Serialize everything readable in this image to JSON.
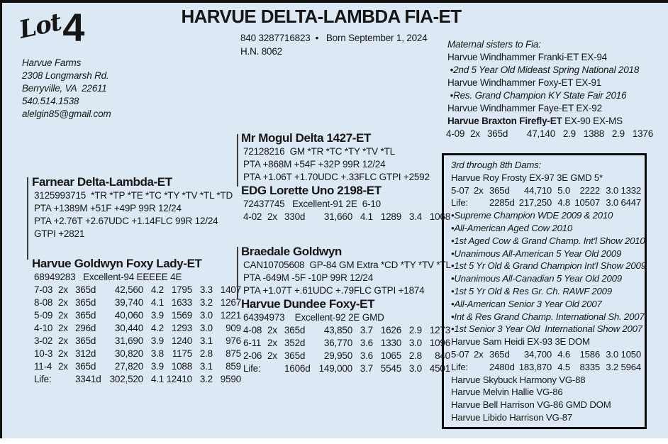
{
  "meta": {
    "bg_color": "#dce9f4",
    "ink_color": "#161616",
    "accent_border": "#0c0c0c"
  },
  "lot": {
    "word": "Lot",
    "number": "4"
  },
  "consignor": [
    "Harvue Farms",
    "2308 Longmarsh Rd.",
    "Berryville, VA  22611",
    "540.514.1538",
    "alelgin85@gmail.com"
  ],
  "header": {
    "title": "HARVUE DELTA-LAMBDA FIA-ET",
    "reg_line": "840 3287716823  •   Born September 1, 2024",
    "hn": "H.N. 8062"
  },
  "maternal_sisters": {
    "heading": "Maternal sisters to Fia:",
    "lines": [
      {
        "kind": "name",
        "text": "Harvue Windhammer Franki-ET EX-94"
      },
      {
        "kind": "award",
        "text": " •2nd 5 Year Old Mideast Spring National 2018"
      },
      {
        "kind": "name",
        "text": "Harvue Windhammer Foxy-ET EX-91"
      },
      {
        "kind": "award",
        "text": " •Res. Grand Champion KY State Fair 2016"
      },
      {
        "kind": "name",
        "text": "Harvue Windhammer Faye-ET EX-92"
      },
      {
        "kind": "name",
        "bold": "Harvue Braxton Firefly-ET",
        "rest": " EX-90 EX-MS"
      }
    ],
    "records": [
      [
        "4-09",
        "2x",
        "365d",
        "47,140",
        "2.9",
        "1388",
        "2.9",
        "1376"
      ]
    ]
  },
  "left_blocks": [
    {
      "name": "Farnear Delta-Lambda-ET",
      "lines": [
        "3125993715  *TR *TP *TE *TC *TY *TV *TL *TD",
        "PTA +1389M +51F +49P 99R 12/24",
        "PTA +2.76T +2.67UDC +1.14FLC 99R 12/24",
        "GTPI +2821"
      ],
      "records": []
    },
    {
      "name": "Harvue Goldwyn Foxy Lady-ET",
      "lines": [
        "68949283   Excellent-94 EEEEE 4E"
      ],
      "records": [
        [
          "7-03",
          "2x",
          "365d",
          "42,560",
          "4.2",
          "1795",
          "3.3",
          "1407"
        ],
        [
          "8-08",
          "2x",
          "365d",
          "39,740",
          "4.1",
          "1633",
          "3.2",
          "1267"
        ],
        [
          "5-09",
          "2x",
          "365d",
          "40,060",
          "3.9",
          "1569",
          "3.0",
          "1221"
        ],
        [
          "4-10",
          "2x",
          "296d",
          "30,440",
          "4.2",
          "1293",
          "3.0",
          "909"
        ],
        [
          "3-02",
          "2x",
          "365d",
          "31,690",
          "3.9",
          "1240",
          "3.1",
          "976"
        ],
        [
          "10-3",
          "2x",
          "312d",
          "30,820",
          "3.8",
          "1175",
          "2.8",
          "875"
        ],
        [
          "11-4",
          "2x",
          "365d",
          "27,820",
          "3.9",
          "1088",
          "3.1",
          "859"
        ],
        [
          "Life:",
          "",
          "3341d",
          "302,520",
          "4.1",
          "12410",
          "3.2",
          "9590"
        ]
      ]
    }
  ],
  "mid_blocks": [
    {
      "name": "Mr Mogul Delta 1427-ET",
      "lines": [
        "72128216  GM *TR *TC *TY *TV *TL",
        "PTA +868M +54F +32P 99R 12/24",
        "PTA +1.06T +1.70UDC +.33FLC GTPI +2592"
      ],
      "records": []
    },
    {
      "name": "EDG Lorette Uno 2198-ET",
      "lines": [
        "72437745   Excellent-91 2E  6-10"
      ],
      "records": [
        [
          "4-02",
          "2x",
          "330d",
          "31,660",
          "4.1",
          "1289",
          "3.4",
          "1068"
        ]
      ]
    },
    {
      "name": "Braedale Goldwyn",
      "lines": [
        "CAN10705608  GP-84 GM Extra *CD *TY *TV *TL",
        "PTA -649M -5F -10P 99R 12/24",
        "PTA +1.07T +.61UDC +.79FLC GTPI +1874"
      ],
      "records": []
    },
    {
      "name": "Harvue Dundee Foxy-ET",
      "lines": [
        "64394973    Excellent-92 2E GMD"
      ],
      "records": [
        [
          "4-08",
          "2x",
          "365d",
          "43,850",
          "3.7",
          "1626",
          "2.9",
          "1273"
        ],
        [
          "6-11",
          "2x",
          "352d",
          "36,770",
          "3.6",
          "1330",
          "3.0",
          "1096"
        ],
        [
          "2-06",
          "2x",
          "365d",
          "29,950",
          "3.6",
          "1065",
          "2.8",
          "840"
        ],
        [
          "Life:",
          "",
          "1606d",
          "149,000",
          "3.7",
          "5545",
          "3.0",
          "4501"
        ]
      ]
    }
  ],
  "dams_box": {
    "heading": "3rd through 8th Dams:",
    "entries": [
      {
        "kind": "name",
        "text": "Harvue Roy Frosty EX-97 3E GMD 5*"
      },
      {
        "cells": [
          "5-07",
          "2x",
          "365d",
          "44,710",
          "5.0",
          "2222",
          "3.0",
          "1332"
        ]
      },
      {
        "cells": [
          "Life:",
          "",
          "2285d",
          "217,250",
          "4.8",
          "10507",
          "3.0",
          "6447"
        ]
      },
      {
        "kind": "award",
        "text": "•Supreme Champion WDE 2009 & 2010"
      },
      {
        "kind": "award",
        "text": "•All-American Aged Cow 2010"
      },
      {
        "kind": "award",
        "text": "•1st Aged Cow & Grand Champ. Int'l Show 2010"
      },
      {
        "kind": "award",
        "text": "•Unanimous All-American 5 Year Old 2009"
      },
      {
        "kind": "award",
        "text": "•1st 5 Yr Old & Grand Champion Int'l Show 2009"
      },
      {
        "kind": "award",
        "text": "•Unanimous All-Canadian 5 Year Old 2009"
      },
      {
        "kind": "award",
        "text": "•1st 5 Yr Old & Res Gr. Ch. RAWF 2009"
      },
      {
        "kind": "award",
        "text": "•All-American Senior 3 Year Old 2007"
      },
      {
        "kind": "award",
        "text": "•Int & Res Grand Champ. International Sh. 2007"
      },
      {
        "kind": "award",
        "text": "•1st Senior 3 Year Old  International Show 2007"
      },
      {
        "kind": "name",
        "text": "Harvue Sam Heidi EX-93 3E DOM"
      },
      {
        "cells": [
          "5-07",
          "2x",
          "365d",
          "34,700",
          "4.6",
          "1586",
          "3.0",
          "1050"
        ]
      },
      {
        "cells": [
          "Life:",
          "",
          "2480d",
          "183,870",
          "4.5",
          "8335",
          "3.2",
          "5964"
        ]
      },
      {
        "kind": "name",
        "text": "Harvue Skybuck Harmony VG-88"
      },
      {
        "kind": "name",
        "text": "Harvue Melvin Hallie VG-86"
      },
      {
        "kind": "name",
        "text": "Harvue Bell Harrison VG-86 GMD DOM"
      },
      {
        "kind": "name",
        "text": "Harvue Libido Harrison VG-87"
      }
    ]
  }
}
